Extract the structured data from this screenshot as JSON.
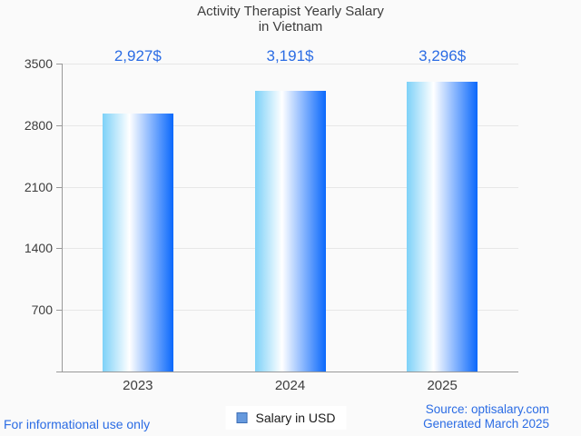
{
  "title": {
    "line1": "Activity Therapist Yearly Salary",
    "line2": "in Vietnam"
  },
  "chart_data": {
    "type": "bar",
    "categories": [
      "2023",
      "2024",
      "2025"
    ],
    "values": [
      2927,
      3191,
      3296
    ],
    "value_labels": [
      "2,927$",
      "3,191$",
      "3,296$"
    ],
    "title": "Activity Therapist Yearly Salary in Vietnam",
    "xlabel": "",
    "ylabel": "",
    "ylim": [
      0,
      3500
    ],
    "yticks": [
      700,
      1400,
      2100,
      2800,
      3500
    ],
    "grid": true,
    "legend": [
      "Salary in USD"
    ],
    "legend_position": "bottom-center"
  },
  "legend": {
    "label": "Salary in USD"
  },
  "footer": {
    "left": "For informational use only",
    "source": "Source: optisalary.com",
    "generated": "Generated March 2025"
  },
  "colors": {
    "accent_text": "#2b6ce4",
    "bar_gradient_left": "#7dd1f8",
    "bar_gradient_mid": "#ffffff",
    "bar_gradient_right": "#0a68fc",
    "legend_swatch": "#6699dd",
    "legend_swatch_border": "#3d6eb5",
    "gridline": "#e7e7e7",
    "axis": "#999999",
    "text_gray": "#3d3d3d",
    "background": "#fafafa"
  }
}
